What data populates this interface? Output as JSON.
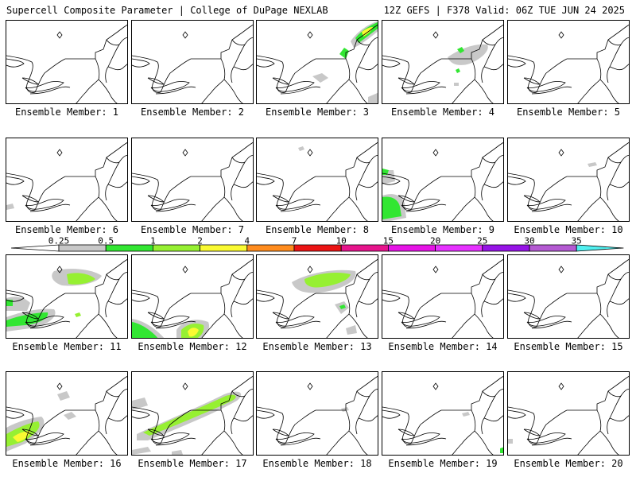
{
  "header": {
    "left_title": "Supercell Composite Parameter | College of DuPage NEXLAB",
    "right_title": "12Z GEFS | F378 Valid: 06Z TUE JUN 24 2025"
  },
  "caption_prefix": "Ensemble Member:",
  "colorbar": {
    "thresholds": [
      "0.25",
      "0.5",
      "1",
      "2",
      "4",
      "7",
      "10",
      "15",
      "20",
      "25",
      "30",
      "35"
    ],
    "colors": [
      "#c8c8c8",
      "#32e632",
      "#96f032",
      "#fafa32",
      "#ff8c1e",
      "#eb1414",
      "#e6148c",
      "#e614e6",
      "#e632ff",
      "#9614e6",
      "#b45ad2",
      "#50f0f0"
    ]
  },
  "members": [
    {
      "id": 1,
      "label": "Ensemble Member: 1"
    },
    {
      "id": 2,
      "label": "Ensemble Member: 2"
    },
    {
      "id": 3,
      "label": "Ensemble Member: 3"
    },
    {
      "id": 4,
      "label": "Ensemble Member: 4"
    },
    {
      "id": 5,
      "label": "Ensemble Member: 5"
    },
    {
      "id": 6,
      "label": "Ensemble Member: 6"
    },
    {
      "id": 7,
      "label": "Ensemble Member: 7"
    },
    {
      "id": 8,
      "label": "Ensemble Member: 8"
    },
    {
      "id": 9,
      "label": "Ensemble Member: 9"
    },
    {
      "id": 10,
      "label": "Ensemble Member: 10"
    },
    {
      "id": 11,
      "label": "Ensemble Member: 11"
    },
    {
      "id": 12,
      "label": "Ensemble Member: 12"
    },
    {
      "id": 13,
      "label": "Ensemble Member: 13"
    },
    {
      "id": 14,
      "label": "Ensemble Member: 14"
    },
    {
      "id": 15,
      "label": "Ensemble Member: 15"
    },
    {
      "id": 16,
      "label": "Ensemble Member: 16"
    },
    {
      "id": 17,
      "label": "Ensemble Member: 17"
    },
    {
      "id": 18,
      "label": "Ensemble Member: 18"
    },
    {
      "id": 19,
      "label": "Ensemble Member: 19"
    },
    {
      "id": 20,
      "label": "Ensemble Member: 20"
    }
  ]
}
